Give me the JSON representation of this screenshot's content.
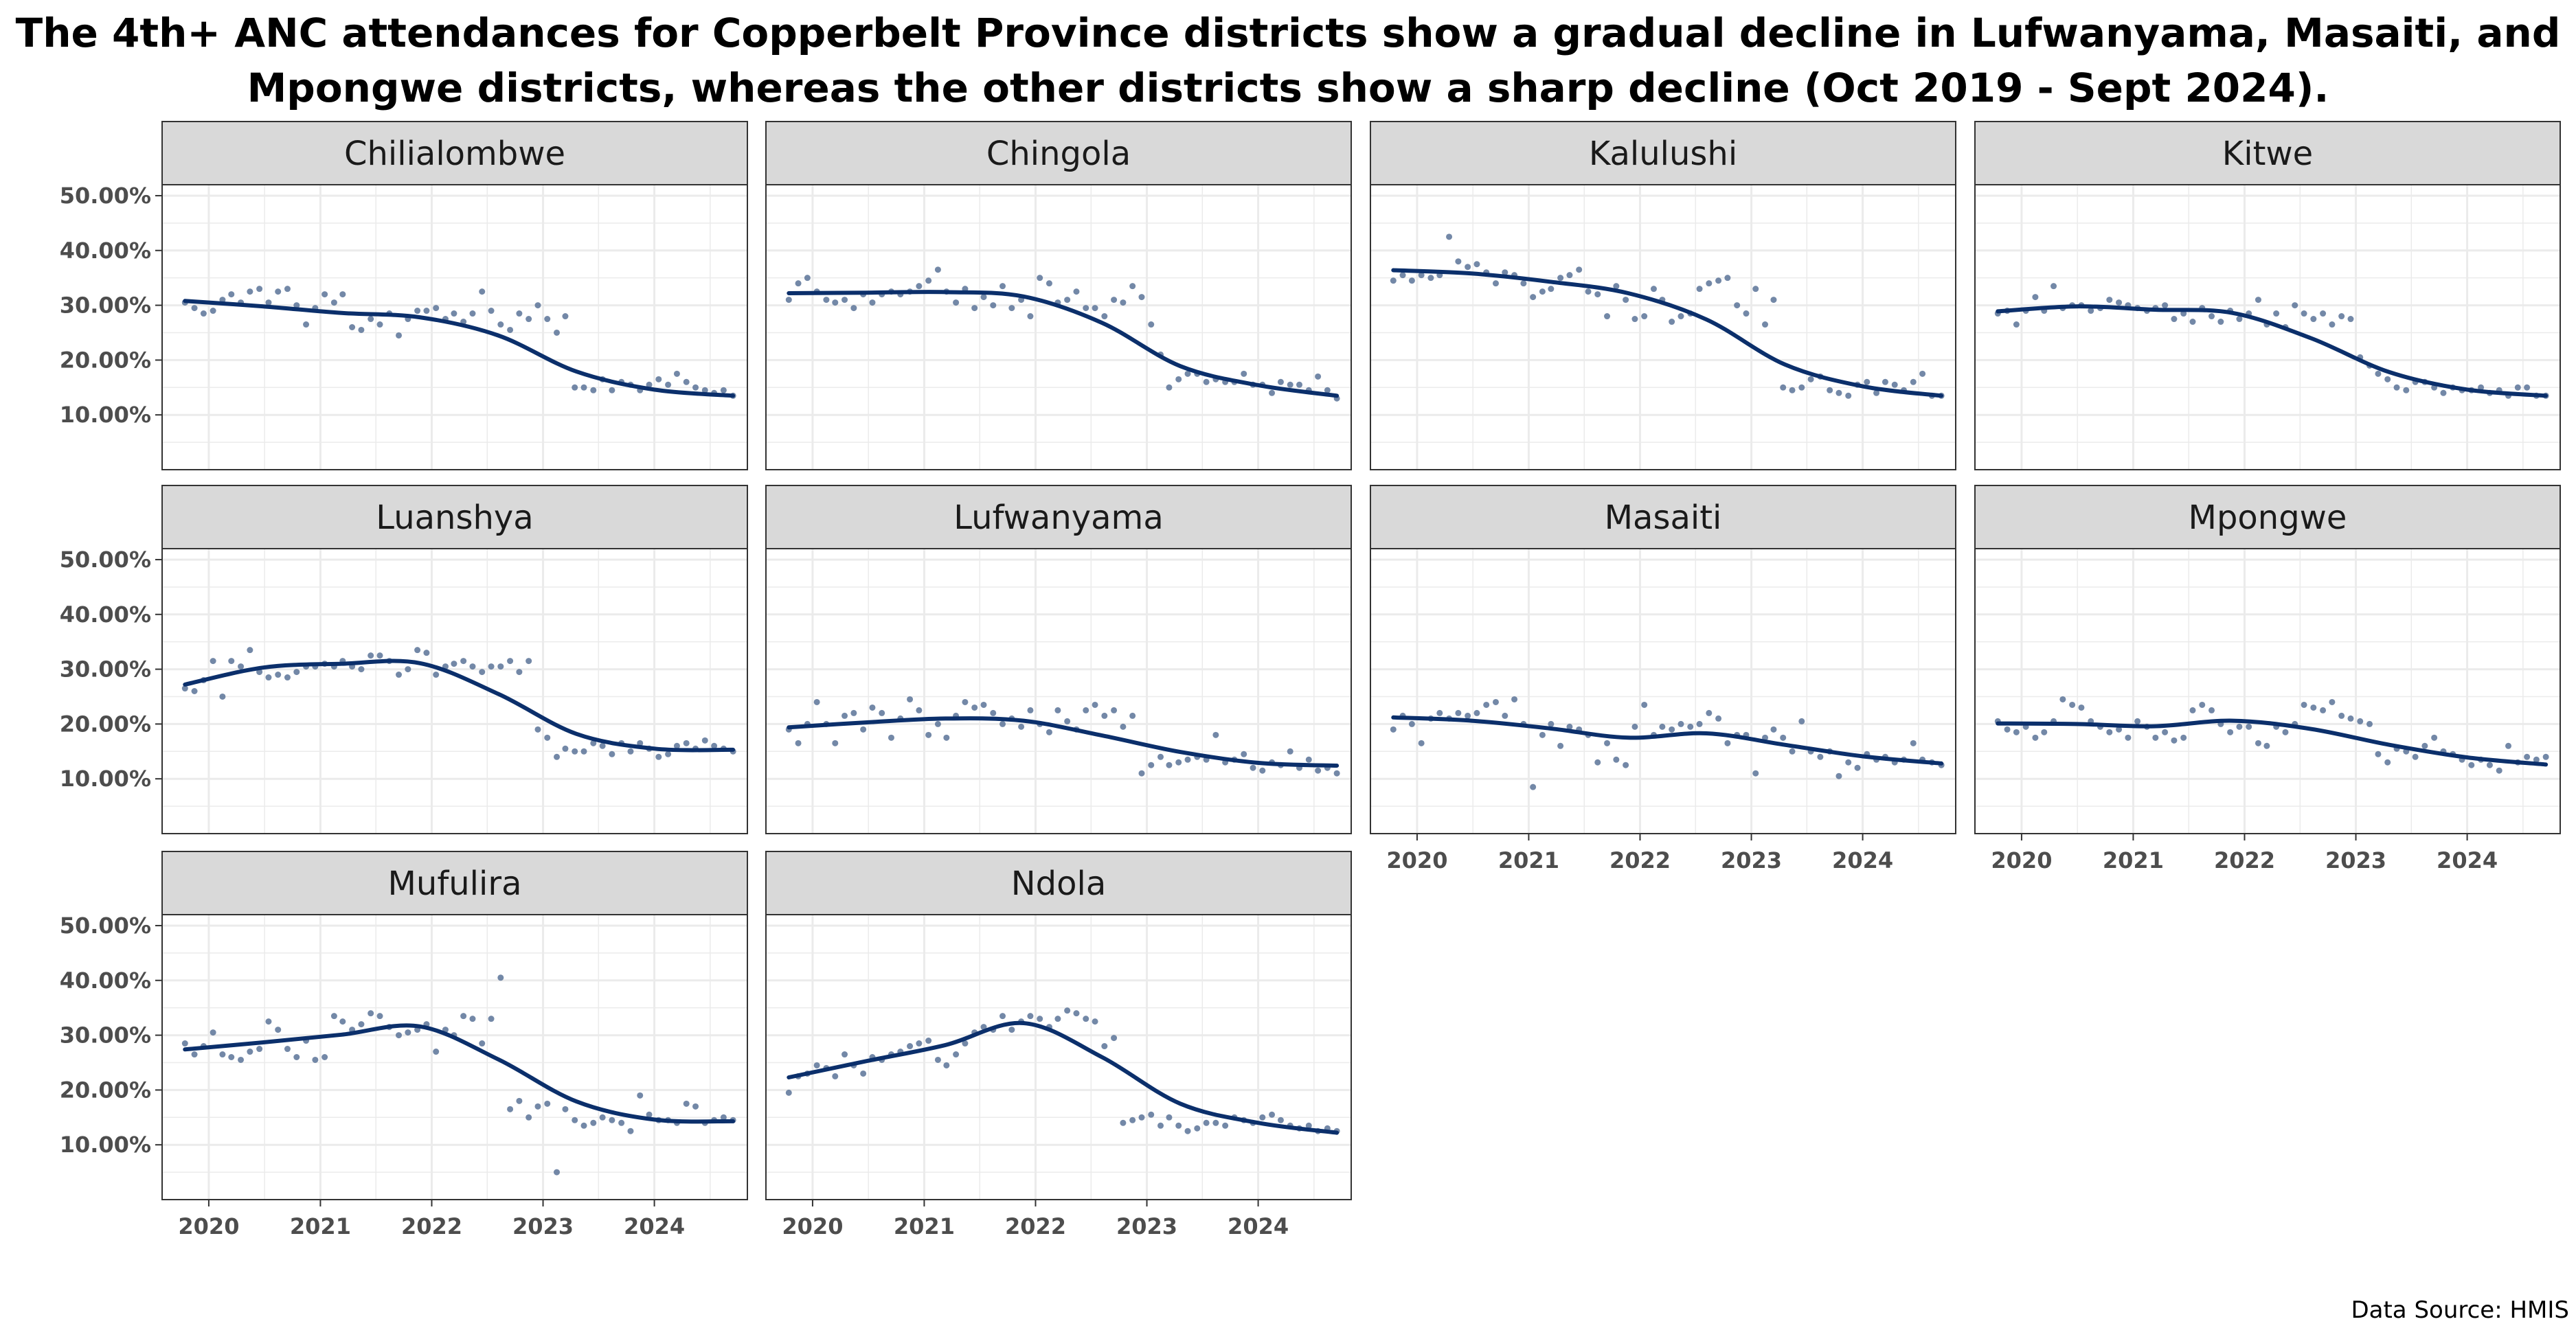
{
  "title_lines": [
    "The 4th+ ANC attendances for Copperbelt Province districts show a gradual decline in Lufwanyama, Masaiti, and",
    "Mpongwe districts, whereas the other districts show a sharp decline (Oct 2019 - Sept 2024)."
  ],
  "caption": "Data Source: HMIS",
  "colors": {
    "line": "#0b2f6b",
    "points": "#5a7398",
    "strip_bg": "#d9d9d9",
    "grid": "#ebebeb",
    "border": "#333333"
  },
  "chart_data": {
    "type": "scatter",
    "facet_wrap": true,
    "x": {
      "type": "date",
      "range": [
        "2019-08-01",
        "2024-11-01"
      ],
      "ticks": [
        "2020",
        "2021",
        "2022",
        "2023",
        "2024"
      ]
    },
    "y": {
      "range": [
        0,
        52
      ],
      "ticks": [
        "10.00%",
        "20.00%",
        "30.00%",
        "40.00%",
        "50.00%"
      ]
    },
    "series_start": "2019-10",
    "grid": true,
    "panels": [
      {
        "name": "Chilialombwe",
        "points": [
          30.5,
          29.5,
          28.5,
          29.0,
          31.0,
          32.0,
          30.5,
          32.5,
          33.0,
          30.5,
          32.5,
          33.0,
          30.0,
          26.5,
          29.5,
          32.0,
          30.5,
          32.0,
          26.0,
          25.5,
          27.5,
          26.5,
          28.5,
          24.5,
          27.5,
          29.0,
          29.0,
          29.5,
          27.5,
          28.5,
          27.0,
          28.5,
          32.5,
          29.0,
          26.5,
          25.5,
          28.5,
          27.5,
          30.0,
          27.5,
          25.0,
          28.0,
          15.0,
          15.0,
          14.5,
          16.5,
          14.5,
          16.0,
          15.5,
          14.5,
          15.5,
          16.5,
          15.5,
          17.5,
          16.0,
          15.0,
          14.5,
          14.0,
          14.5,
          13.5
        ],
        "trend": [
          30.8,
          29.8,
          28.6,
          27.8,
          24.5,
          17.9,
          14.6,
          13.5
        ]
      },
      {
        "name": "Chingola",
        "points": [
          31.0,
          34.0,
          35.0,
          32.5,
          31.0,
          30.5,
          31.0,
          29.5,
          32.0,
          30.5,
          32.0,
          32.5,
          32.0,
          32.5,
          33.5,
          34.5,
          36.5,
          32.5,
          30.5,
          33.0,
          29.5,
          31.5,
          30.0,
          33.5,
          29.5,
          31.0,
          28.0,
          35.0,
          34.0,
          30.5,
          31.0,
          32.5,
          29.5,
          29.5,
          28.0,
          31.0,
          30.5,
          33.5,
          31.5,
          26.5,
          21.0,
          15.0,
          16.5,
          17.5,
          17.5,
          16.0,
          16.5,
          16.0,
          16.0,
          17.5,
          15.5,
          15.5,
          14.0,
          16.0,
          15.5,
          15.5,
          14.5,
          17.0,
          14.5,
          13.0
        ],
        "trend": [
          32.2,
          32.3,
          32.4,
          31.6,
          26.8,
          18.9,
          15.4,
          13.5
        ]
      },
      {
        "name": "Kalulushi",
        "points": [
          34.5,
          35.5,
          34.5,
          35.5,
          35.0,
          35.5,
          42.5,
          38.0,
          37.0,
          37.5,
          36.0,
          34.0,
          36.0,
          35.5,
          34.0,
          31.5,
          32.5,
          33.0,
          35.0,
          35.5,
          36.5,
          32.5,
          32.0,
          28.0,
          33.5,
          31.0,
          27.5,
          28.0,
          33.0,
          31.0,
          27.0,
          28.0,
          28.5,
          33.0,
          34.0,
          34.5,
          35.0,
          30.0,
          28.5,
          33.0,
          26.5,
          31.0,
          15.0,
          14.5,
          15.0,
          16.5,
          17.0,
          14.5,
          14.0,
          13.5,
          15.5,
          16.0,
          14.0,
          16.0,
          15.5,
          14.5,
          16.0,
          17.5,
          13.5,
          13.5
        ],
        "trend": [
          36.4,
          35.8,
          34.3,
          32.2,
          27.4,
          19.2,
          15.2,
          13.5
        ]
      },
      {
        "name": "Kitwe",
        "points": [
          28.5,
          29.0,
          26.5,
          29.0,
          31.5,
          29.0,
          33.5,
          29.5,
          30.0,
          30.0,
          29.0,
          29.5,
          31.0,
          30.5,
          30.0,
          29.5,
          29.0,
          29.5,
          30.0,
          27.5,
          28.5,
          27.0,
          29.5,
          28.0,
          27.0,
          29.0,
          27.5,
          28.5,
          31.0,
          26.5,
          28.5,
          26.0,
          30.0,
          28.5,
          27.5,
          28.5,
          26.5,
          28.0,
          27.5,
          20.5,
          19.0,
          17.5,
          16.5,
          15.0,
          14.5,
          16.0,
          16.0,
          15.0,
          14.0,
          15.0,
          14.5,
          14.5,
          15.0,
          14.0,
          14.5,
          13.5,
          15.0,
          15.0,
          13.5,
          13.5
        ],
        "trend": [
          28.9,
          29.8,
          29.2,
          28.6,
          24.0,
          17.8,
          14.6,
          13.5
        ]
      },
      {
        "name": "Luanshya",
        "points": [
          26.5,
          26.0,
          28.0,
          31.5,
          25.0,
          31.5,
          30.5,
          33.5,
          29.5,
          28.5,
          29.0,
          28.5,
          29.5,
          30.5,
          30.5,
          31.0,
          30.5,
          31.5,
          30.5,
          30.0,
          32.5,
          32.5,
          31.5,
          29.0,
          30.0,
          33.5,
          33.0,
          29.0,
          30.5,
          31.0,
          31.5,
          30.5,
          29.5,
          30.5,
          30.5,
          31.5,
          29.5,
          31.5,
          19.0,
          17.5,
          14.0,
          15.5,
          15.0,
          15.0,
          16.5,
          16.0,
          14.5,
          16.5,
          15.0,
          16.5,
          15.5,
          14.0,
          14.5,
          16.0,
          16.5,
          15.5,
          17.0,
          16.0,
          15.5,
          15.0
        ],
        "trend": [
          27.2,
          30.3,
          31.0,
          31.1,
          25.5,
          18.2,
          15.5,
          15.3
        ]
      },
      {
        "name": "Lufwanyama",
        "points": [
          19.0,
          16.5,
          20.0,
          24.0,
          20.0,
          16.5,
          21.5,
          22.0,
          19.0,
          23.0,
          22.0,
          17.5,
          21.0,
          24.5,
          22.5,
          18.0,
          20.0,
          17.5,
          21.5,
          24.0,
          23.0,
          23.5,
          22.0,
          20.0,
          21.0,
          19.5,
          22.5,
          20.0,
          18.5,
          22.5,
          20.5,
          19.0,
          22.5,
          23.5,
          21.5,
          22.5,
          19.5,
          21.5,
          11.0,
          12.5,
          14.0,
          12.5,
          13.0,
          13.5,
          14.0,
          13.5,
          18.0,
          13.0,
          13.5,
          14.5,
          12.0,
          11.5,
          13.0,
          12.5,
          15.0,
          12.0,
          13.5,
          11.5,
          12.0,
          11.0
        ],
        "trend": [
          19.4,
          20.3,
          21.0,
          20.6,
          17.9,
          14.9,
          12.9,
          12.4
        ]
      },
      {
        "name": "Masaiti",
        "points": [
          19.0,
          21.5,
          20.0,
          16.5,
          21.0,
          22.0,
          21.0,
          22.0,
          21.5,
          22.0,
          23.5,
          24.0,
          21.5,
          24.5,
          20.0,
          8.5,
          18.0,
          20.0,
          16.0,
          19.5,
          19.0,
          18.0,
          13.0,
          16.5,
          13.5,
          12.5,
          19.5,
          23.5,
          18.0,
          19.5,
          19.0,
          20.0,
          19.5,
          20.0,
          22.0,
          21.0,
          16.5,
          18.0,
          18.0,
          11.0,
          17.5,
          19.0,
          17.5,
          15.0,
          20.5,
          15.0,
          14.0,
          15.0,
          10.5,
          13.0,
          12.0,
          14.5,
          13.5,
          14.0,
          13.0,
          13.5,
          16.5,
          13.5,
          13.0,
          12.5
        ],
        "trend": [
          21.2,
          20.6,
          19.2,
          17.5,
          18.3,
          16.2,
          14.1,
          12.8
        ]
      },
      {
        "name": "Mpongwe",
        "points": [
          20.5,
          19.0,
          18.5,
          19.5,
          17.5,
          18.5,
          20.5,
          24.5,
          23.5,
          23.0,
          20.5,
          19.5,
          18.5,
          19.0,
          17.5,
          20.5,
          19.5,
          17.5,
          18.5,
          17.0,
          17.5,
          22.5,
          23.5,
          22.5,
          20.0,
          18.5,
          19.5,
          19.5,
          16.5,
          16.0,
          19.5,
          18.5,
          20.0,
          23.5,
          23.0,
          22.5,
          24.0,
          21.5,
          21.0,
          20.5,
          20.0,
          14.5,
          13.0,
          15.5,
          15.0,
          14.0,
          16.0,
          17.5,
          15.0,
          14.5,
          13.5,
          12.5,
          13.5,
          12.5,
          11.5,
          16.0,
          13.0,
          14.0,
          13.5,
          14.0
        ],
        "trend": [
          20.1,
          20.0,
          19.6,
          20.6,
          19.1,
          16.2,
          13.9,
          12.6
        ]
      },
      {
        "name": "Mufulira",
        "points": [
          28.5,
          26.5,
          28.0,
          30.5,
          26.5,
          26.0,
          25.5,
          27.0,
          27.5,
          32.5,
          31.0,
          27.5,
          26.0,
          29.0,
          25.5,
          26.0,
          33.5,
          32.5,
          31.0,
          32.0,
          34.0,
          33.5,
          31.5,
          30.0,
          30.5,
          31.0,
          32.0,
          27.0,
          31.0,
          30.0,
          33.5,
          33.0,
          28.5,
          33.0,
          40.5,
          16.5,
          18.0,
          15.0,
          17.0,
          17.5,
          5.0,
          16.5,
          14.5,
          13.5,
          14.0,
          15.0,
          14.5,
          14.0,
          12.5,
          19.0,
          15.5,
          14.5,
          14.5,
          14.0,
          17.5,
          17.0,
          14.0,
          14.5,
          15.0,
          14.5
        ],
        "trend": [
          27.4,
          28.7,
          30.1,
          31.6,
          25.6,
          17.9,
          14.6,
          14.3
        ]
      },
      {
        "name": "Ndola",
        "points": [
          19.5,
          22.5,
          23.0,
          24.5,
          24.0,
          22.5,
          26.5,
          24.5,
          23.0,
          26.0,
          25.5,
          26.5,
          27.0,
          28.0,
          28.5,
          29.0,
          25.5,
          24.5,
          26.5,
          28.5,
          30.5,
          31.5,
          31.0,
          33.5,
          31.0,
          32.5,
          33.5,
          33.0,
          31.5,
          33.0,
          34.5,
          34.0,
          33.0,
          32.5,
          28.0,
          29.5,
          14.0,
          14.5,
          15.0,
          15.5,
          13.5,
          15.0,
          13.5,
          12.5,
          13.0,
          14.0,
          14.0,
          13.5,
          15.0,
          14.5,
          14.0,
          15.0,
          15.5,
          14.5,
          13.5,
          13.0,
          13.5,
          12.5,
          13.0,
          12.5
        ],
        "trend": [
          22.3,
          25.3,
          28.2,
          32.2,
          26.0,
          17.5,
          14.0,
          12.2
        ]
      }
    ]
  }
}
